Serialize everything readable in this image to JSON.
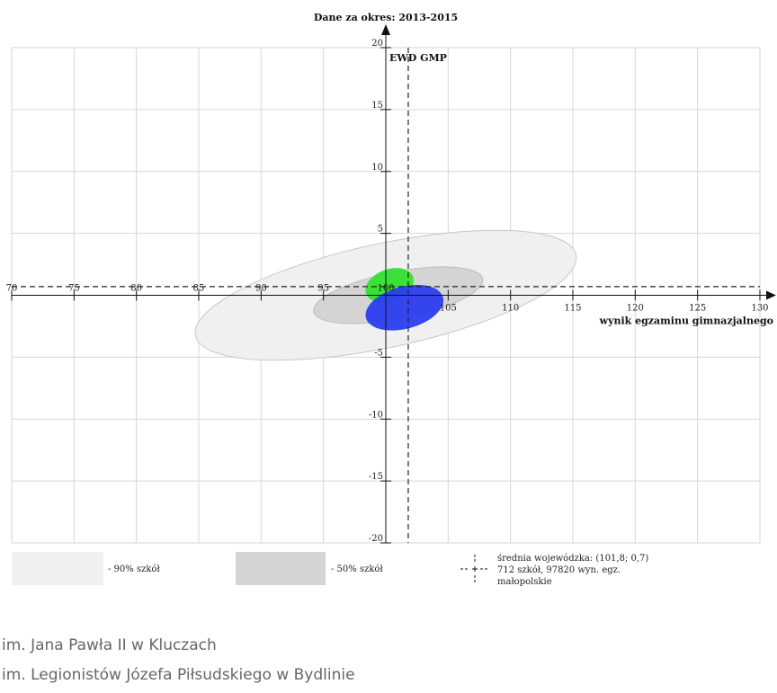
{
  "chart_data": {
    "type": "scatter",
    "title": "Dane za okres: 2013-2015",
    "xlabel": "wynik egzaminu gimnazjalnego",
    "ylabel": "EWD GMP",
    "xlim": [
      70,
      130
    ],
    "ylim": [
      -20,
      20
    ],
    "x_ticks": [
      70,
      75,
      80,
      85,
      90,
      95,
      100,
      105,
      110,
      115,
      120,
      125,
      130
    ],
    "y_ticks": [
      -20,
      -15,
      -10,
      -5,
      0,
      5,
      10,
      15,
      20
    ],
    "grid": true,
    "reference_lines": {
      "x": 101.8,
      "y": 0.7
    },
    "regions": [
      {
        "name": "90% szkół",
        "cx": 100,
        "cy": 0,
        "rx": 15.6,
        "ry": 4.2,
        "angle_deg": -12,
        "color": "#f0f0f0"
      },
      {
        "name": "50% szkół",
        "cx": 101,
        "cy": 0,
        "rx": 6.9,
        "ry": 1.9,
        "angle_deg": -11,
        "color": "#d4d4d4"
      }
    ],
    "schools": [
      {
        "name": "im. Jana Pawła II w Kluczach",
        "cx": 100.3,
        "cy": 0.8,
        "rx": 2.0,
        "ry": 1.3,
        "angle_deg": -20,
        "color": "#33e033"
      },
      {
        "name": "im. Legionistów Józefa Piłsudskiego w Bydlinie",
        "cx": 101.5,
        "cy": -1.0,
        "rx": 3.2,
        "ry": 1.7,
        "angle_deg": -15,
        "color": "#2a3df0"
      }
    ]
  },
  "legend": {
    "swatch_90": "- 90% szkół",
    "swatch_50": "- 50% szkół",
    "mean_line1": "średnia wojewódzka: (101,8; 0,7)",
    "mean_line2": "712 szkół, 97820 wyn. egz.",
    "mean_line3": "małopolskie"
  },
  "school_list": [
    "im. Jana Pawła II w Kluczach",
    "im. Legionistów Józefa Piłsudskiego w Bydlinie"
  ]
}
